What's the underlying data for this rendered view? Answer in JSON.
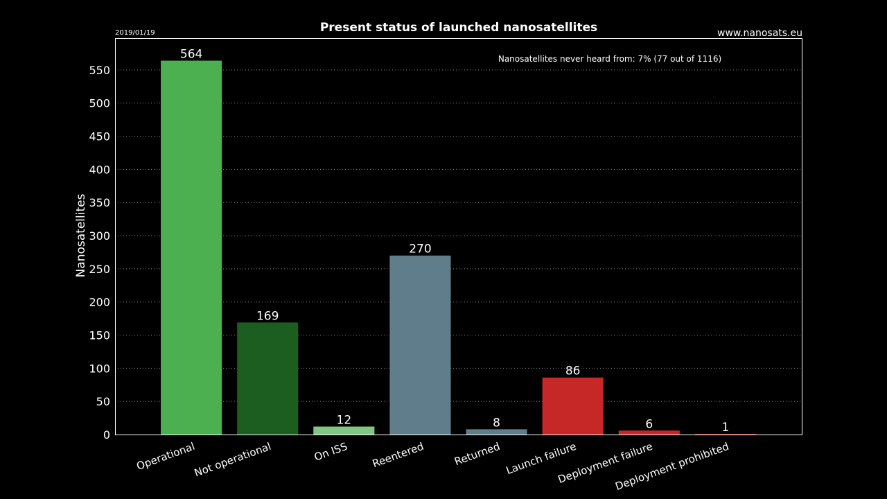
{
  "header": {
    "date": "2019/01/19",
    "source": "www.nanosats.eu"
  },
  "chart_data": {
    "type": "bar",
    "title": "Present status of launched nanosatellites",
    "xlabel": "",
    "ylabel": "Nanosatellites",
    "ylim": [
      0,
      598
    ],
    "yticks": [
      0,
      50,
      100,
      150,
      200,
      250,
      300,
      350,
      400,
      450,
      500,
      550
    ],
    "grid": true,
    "annotation": "Nanosatellites never heard from: 7% (77 out of 1116)",
    "categories": [
      "Operational",
      "Not operational",
      "On ISS",
      "Reentered",
      "Returned",
      "Launch failure",
      "Deployment failure",
      "Deployment prohibited"
    ],
    "values": [
      564,
      169,
      12,
      270,
      8,
      86,
      6,
      1
    ],
    "colors": [
      "#4caf50",
      "#1b5e20",
      "#81c784",
      "#607d8b",
      "#607d8b",
      "#c62828",
      "#c62828",
      "#c62828"
    ]
  }
}
